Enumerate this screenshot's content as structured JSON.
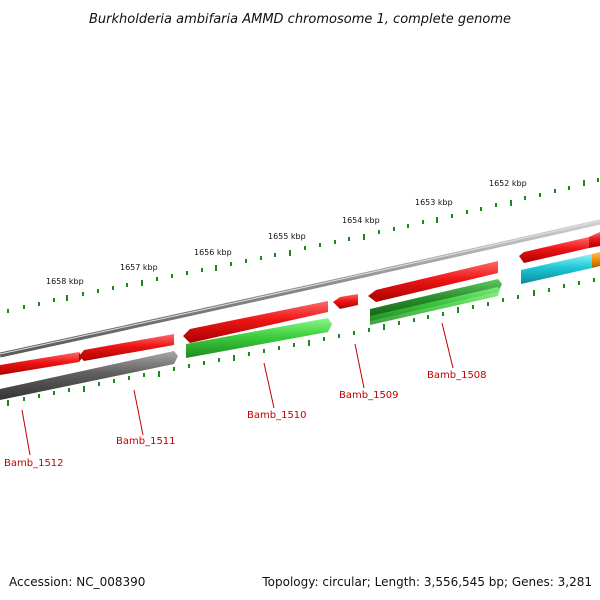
{
  "title": "Burkholderia ambifaria AMMD chromosome 1, complete genome",
  "footer": {
    "accession": "Accession: NC_008390",
    "summary": "Topology: circular; Length: 3,556,545 bp; Genes: 3,281"
  },
  "scale_labels": [
    "1652 kbp",
    "1653 kbp",
    "1654 kbp",
    "1655 kbp",
    "1656 kbp",
    "1657 kbp",
    "1658 kbp"
  ],
  "genes": [
    {
      "name": "Bamb_1508",
      "strand": "forward",
      "color": "#2e9e2e"
    },
    {
      "name": "Bamb_1509",
      "strand": "reverse",
      "color": "#e81010"
    },
    {
      "name": "Bamb_1510",
      "strand": "forward",
      "color": "#3ecf3e"
    },
    {
      "name": "Bamb_1511",
      "strand": "forward",
      "color": "#606060"
    },
    {
      "name": "Bamb_1512",
      "strand": "reverse",
      "color": "#e81010"
    }
  ],
  "colors": {
    "reverse_cds": "#e81010",
    "forward_cds_green": "#3ecf3e",
    "forward_cds_dark_green": "#2e9e2e",
    "forward_cds_gray": "#606060",
    "cyan_feature": "#1ec8d8",
    "orange_feature": "#f08c00",
    "backbone": "#8a8a8a",
    "ticks": "#1a8a1a",
    "labels": "#c00000"
  }
}
